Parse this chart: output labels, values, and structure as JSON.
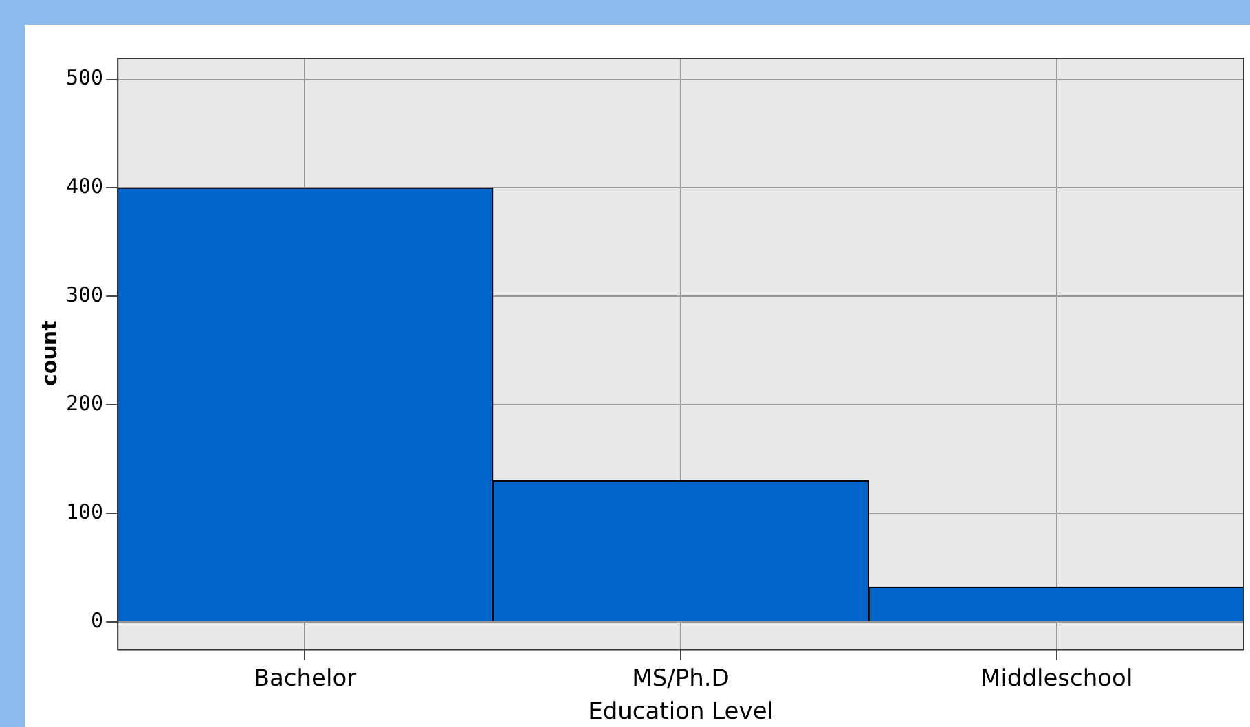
{
  "chart_data": {
    "type": "bar",
    "xlabel": "Education Level",
    "ylabel": "count",
    "categories": [
      "Bachelor",
      "MS/Ph.D",
      "Middleschool"
    ],
    "values": [
      400,
      130,
      32
    ],
    "color": "#0066cc",
    "ylim": [
      -25,
      520
    ],
    "yticks": [
      0,
      100,
      200,
      300,
      400,
      500
    ],
    "grid": true
  }
}
